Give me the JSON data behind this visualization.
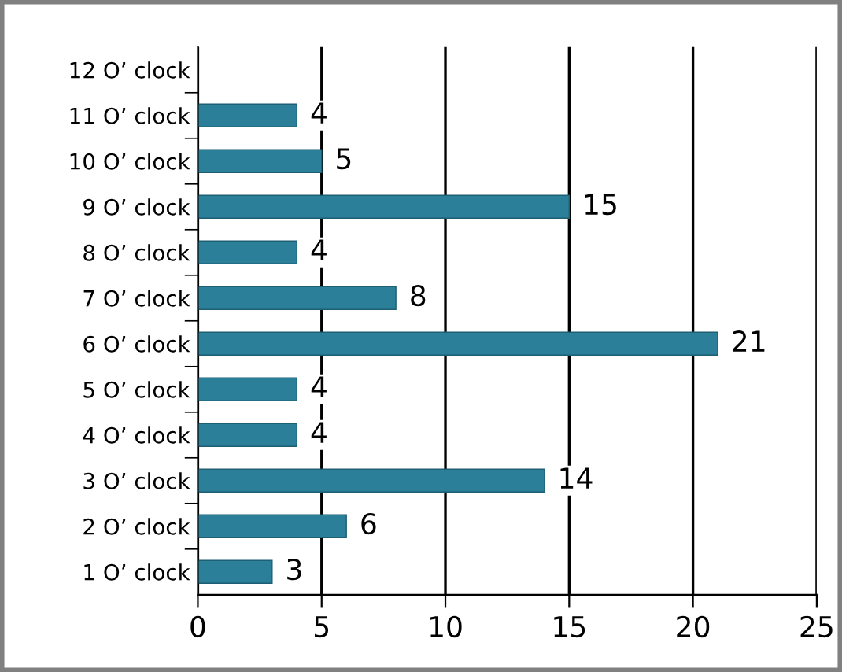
{
  "chart_data": {
    "type": "bar",
    "orientation": "horizontal",
    "categories": [
      "12 O’ clock",
      "11 O’ clock",
      "10 O’ clock",
      "9 O’ clock",
      "8 O’ clock",
      "7 O’ clock",
      "6 O’ clock",
      "5 O’ clock",
      "4 O’ clock",
      "3 O’ clock",
      "2 O’ clock",
      "1 O’ clock"
    ],
    "values": [
      null,
      4,
      5,
      15,
      4,
      8,
      21,
      4,
      4,
      14,
      6,
      3
    ],
    "color": "#2b7f99",
    "xlim": [
      0,
      25
    ],
    "xticks": [
      0,
      5,
      10,
      15,
      20,
      25
    ],
    "grid": "x",
    "data_labels": true
  }
}
